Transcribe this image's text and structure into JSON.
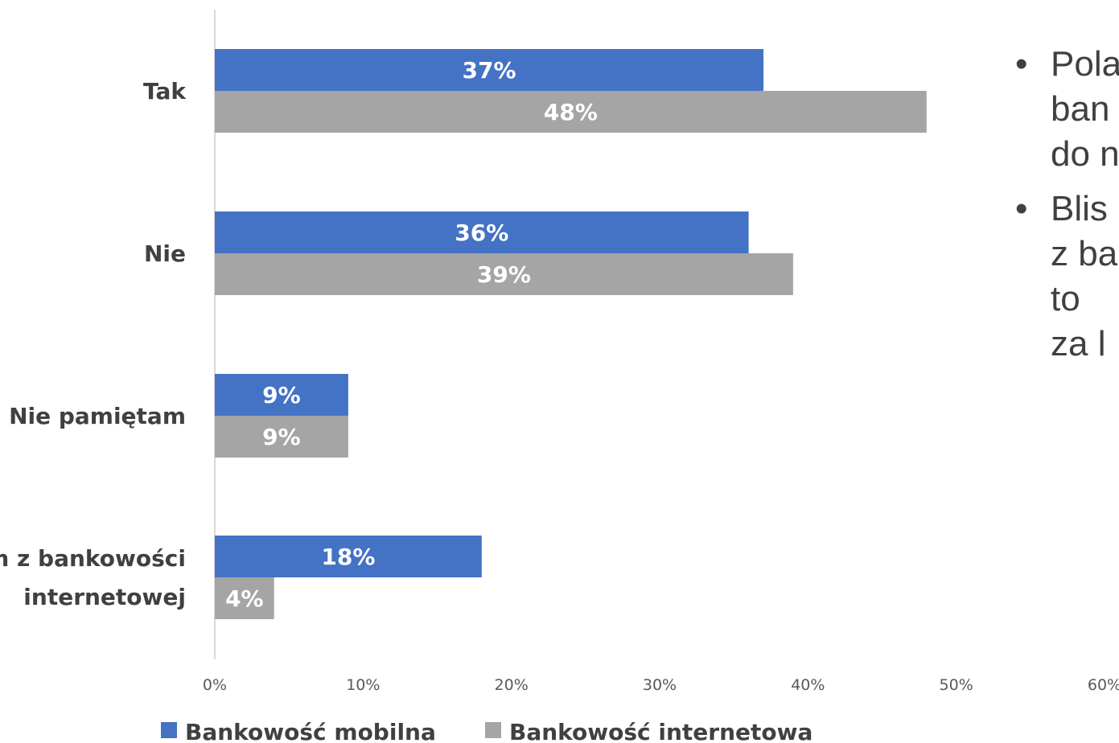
{
  "chart_data": {
    "type": "bar",
    "orientation": "horizontal",
    "categories": [
      "Tak",
      "Nie",
      "Nie pamiętam",
      "Nie korzystam z bankowości internetowej"
    ],
    "category_label_lines": [
      [
        "Tak"
      ],
      [
        "Nie"
      ],
      [
        "Nie pamiętam"
      ],
      [
        "Nie korzystam z bankowości",
        "internetowej"
      ]
    ],
    "series": [
      {
        "name": "Bankowość mobilna",
        "values": [
          37,
          36,
          9,
          18
        ],
        "labels": [
          "37%",
          "36%",
          "9%",
          "18%"
        ],
        "color": "#4472C4"
      },
      {
        "name": "Bankowość internetowa",
        "values": [
          48,
          39,
          9,
          4
        ],
        "labels": [
          "48%",
          "39%",
          "9%",
          "4%"
        ],
        "color": "#A5A5A5"
      }
    ],
    "xlim": [
      0,
      60
    ],
    "xticks": [
      0,
      10,
      20,
      30,
      40,
      50,
      60
    ],
    "xtick_labels": [
      "0%",
      "10%",
      "20%",
      "30%",
      "40%",
      "50%",
      "60%"
    ],
    "grid": false,
    "legend": "bottom",
    "title": "",
    "xlabel": "",
    "ylabel": ""
  },
  "bullets": [
    {
      "symbol": "•",
      "lines": [
        "Pola",
        "ban",
        "do n"
      ]
    },
    {
      "symbol": "•",
      "lines": [
        "Blis",
        "z ba",
        "to",
        "za l"
      ]
    }
  ]
}
